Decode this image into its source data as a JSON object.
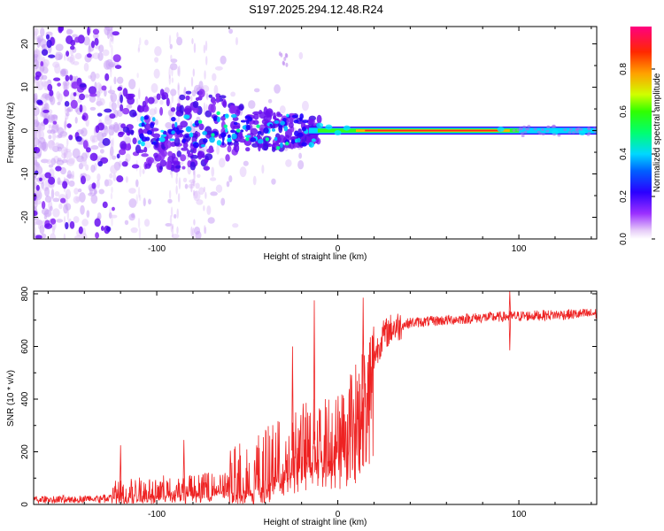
{
  "title": "S197.2025.294.12.48.R24",
  "chart_data": [
    {
      "type": "heatmap",
      "name": "spectrogram",
      "xlabel": "Height of straight line (km)",
      "ylabel": "Frequency (Hz)",
      "xlim": [
        -168,
        143
      ],
      "ylim": [
        -25,
        24
      ],
      "xticks": [
        -100,
        0,
        100
      ],
      "xtick_labels": [
        "-100",
        "0",
        "100"
      ],
      "yticks": [
        -20,
        -10,
        0,
        10,
        20
      ],
      "ytick_labels": [
        "-20",
        "-10",
        "0",
        "10",
        "20"
      ],
      "colorbar": {
        "label": "Normalized spectral amplitude",
        "range": [
          0,
          1
        ],
        "ticks": [
          0.0,
          0.2,
          0.4,
          0.6,
          0.8
        ],
        "tick_labels": [
          "0.0",
          "0.2",
          "0.4",
          "0.6",
          "0.8"
        ],
        "colormap": [
          "#ffffff",
          "#d9b8f5",
          "#9b30ff",
          "#4b0aff",
          "#0000ff",
          "#00c8ff",
          "#00ff80",
          "#30ff00",
          "#c8ff00",
          "#ffd000",
          "#ff8000",
          "#ff2000",
          "#ff0080"
        ]
      },
      "features": {
        "stable_band_start_km": -12,
        "stable_band_freq_hz": 0,
        "noise_onset_km": -30
      }
    },
    {
      "type": "line",
      "name": "snr",
      "xlabel": "Height of straight line (km)",
      "ylabel": "SNR (10 * v/v)",
      "xlim": [
        -168,
        143
      ],
      "ylim": [
        0,
        810
      ],
      "xticks": [
        -100,
        0,
        100
      ],
      "xtick_labels": [
        "-100",
        "0",
        "100"
      ],
      "yticks": [
        0,
        200,
        400,
        600,
        800
      ],
      "ytick_labels": [
        "0",
        "200",
        "400",
        "600",
        "800"
      ],
      "color": "#ee2222",
      "trend": {
        "x": [
          -168,
          -130,
          -120,
          -100,
          -80,
          -60,
          -40,
          -30,
          -20,
          -10,
          0,
          5,
          10,
          15,
          20,
          25,
          30,
          40,
          60,
          80,
          100,
          120,
          143
        ],
        "y": [
          20,
          25,
          40,
          55,
          60,
          75,
          130,
          180,
          230,
          250,
          270,
          330,
          390,
          450,
          560,
          640,
          670,
          690,
          700,
          710,
          715,
          720,
          725
        ]
      },
      "annotations": {
        "spikes": [
          {
            "x": -13,
            "y": 775
          },
          {
            "x": 14,
            "y": 785
          },
          {
            "x": -25,
            "y": 600
          },
          {
            "x": 95,
            "y": 810
          },
          {
            "x": 95,
            "y": 585
          },
          {
            "x": -85,
            "y": 245
          },
          {
            "x": -120,
            "y": 225
          }
        ]
      }
    }
  ]
}
